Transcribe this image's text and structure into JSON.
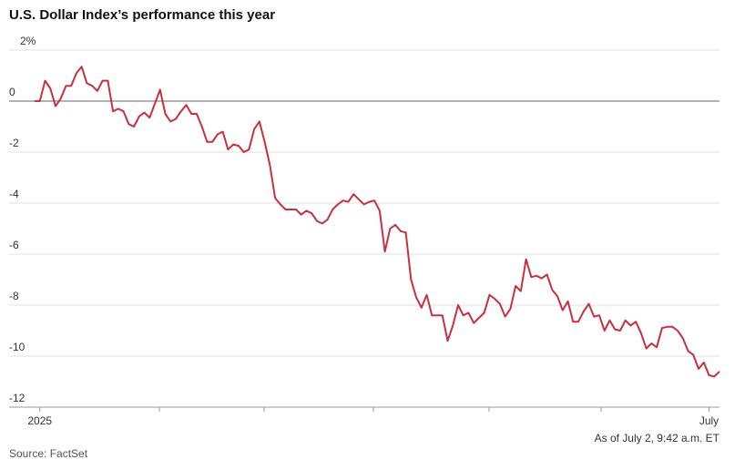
{
  "chart_data": {
    "type": "line",
    "title": "U.S. Dollar Index’s performance this year",
    "source": "Source: FactSet",
    "note": "As of July 2, 9:42 a.m. ET",
    "categories": [
      null,
      "2025",
      null,
      null,
      null,
      null,
      null,
      null,
      null,
      null,
      null,
      null,
      null,
      null,
      null,
      null,
      null,
      null,
      null,
      null,
      null,
      null,
      null,
      null,
      null,
      null,
      null,
      null,
      null,
      null,
      null,
      null,
      null,
      null,
      null,
      null,
      null,
      null,
      null,
      null,
      null,
      null,
      null,
      null,
      null,
      null,
      null,
      null,
      null,
      null,
      null,
      null,
      null,
      null,
      null,
      null,
      null,
      null,
      null,
      null,
      null,
      null,
      null,
      null,
      null,
      null,
      null,
      null,
      null,
      null,
      null,
      null,
      null,
      null,
      null,
      null,
      null,
      null,
      null,
      null,
      null,
      null,
      null,
      null,
      null,
      null,
      null,
      null,
      null,
      null,
      null,
      null,
      null,
      null,
      null,
      null,
      null,
      null,
      null,
      null,
      null,
      null,
      null,
      null,
      null,
      null,
      null,
      null,
      null,
      null,
      null,
      null,
      null,
      null,
      null,
      null,
      null,
      null,
      null,
      null,
      null,
      null,
      null,
      null,
      null,
      null,
      null,
      null,
      null,
      "July",
      null,
      null
    ],
    "series": [
      {
        "name": "U.S. Dollar Index",
        "color": "#c8303f",
        "values": [
          0,
          0,
          0.8,
          0.5,
          -0.2,
          0.1,
          0.6,
          0.6,
          1.1,
          1.35,
          0.7,
          0.6,
          0.4,
          0.8,
          0.8,
          -0.4,
          -0.3,
          -0.4,
          -0.9,
          -1.0,
          -0.6,
          -0.45,
          -0.65,
          -0.1,
          0.45,
          -0.5,
          -0.8,
          -0.7,
          -0.4,
          -0.15,
          -0.5,
          -0.5,
          -1.0,
          -1.6,
          -1.6,
          -1.3,
          -1.2,
          -1.9,
          -1.7,
          -1.75,
          -2.0,
          -1.9,
          -1.1,
          -0.8,
          -1.6,
          -2.5,
          -3.8,
          -4.05,
          -4.25,
          -4.25,
          -4.25,
          -4.45,
          -4.3,
          -4.4,
          -4.7,
          -4.8,
          -4.65,
          -4.25,
          -4.05,
          -3.9,
          -3.95,
          -3.65,
          -3.85,
          -4.05,
          -3.95,
          -3.9,
          -4.3,
          -5.9,
          -5.0,
          -4.85,
          -5.1,
          -5.15,
          -7.0,
          -7.7,
          -8.1,
          -7.6,
          -8.4,
          -8.4,
          -8.4,
          -9.4,
          -8.8,
          -8.0,
          -8.4,
          -8.3,
          -8.7,
          -8.5,
          -8.3,
          -7.6,
          -7.75,
          -7.95,
          -8.45,
          -8.15,
          -7.25,
          -7.45,
          -6.2,
          -6.9,
          -6.85,
          -6.95,
          -6.8,
          -7.4,
          -7.65,
          -8.2,
          -7.85,
          -8.65,
          -8.65,
          -8.25,
          -7.95,
          -8.45,
          -8.4,
          -9.0,
          -8.6,
          -8.95,
          -9.0,
          -8.6,
          -8.8,
          -8.65,
          -9.1,
          -9.7,
          -9.5,
          -9.65,
          -8.9,
          -8.85,
          -8.85,
          -9.0,
          -9.3,
          -9.8,
          -9.95,
          -10.5,
          -10.25,
          -10.75,
          -10.8,
          -10.6
        ]
      }
    ],
    "ylim": [
      -12,
      2
    ],
    "yticks": [
      {
        "value": 2,
        "label": "2%"
      },
      0,
      -2,
      -4,
      -6,
      -8,
      -10,
      -12
    ],
    "grid": true
  }
}
